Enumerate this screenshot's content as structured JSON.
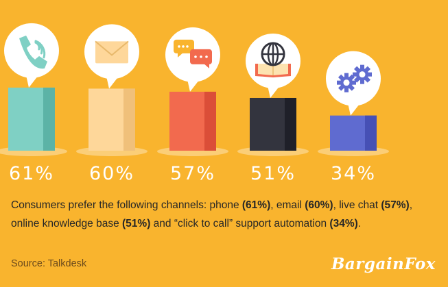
{
  "chart_data": {
    "type": "bar",
    "categories": [
      "phone",
      "email",
      "live chat",
      "online knowledge base",
      "click to call support automation"
    ],
    "values": [
      61,
      60,
      57,
      51,
      34
    ],
    "value_labels": [
      "61%",
      "60%",
      "57%",
      "51%",
      "34%"
    ],
    "icons": [
      "phone-icon",
      "envelope-icon",
      "chat-bubbles-icon",
      "globe-book-icon",
      "gears-icon"
    ],
    "colors": [
      "#7fd0c4",
      "#fed79a",
      "#f26a4e",
      "#33343e",
      "#5f6bd0"
    ],
    "shade_colors": [
      "#5cb3a6",
      "#f0c07a",
      "#db4e38",
      "#1f2029",
      "#4650b5"
    ]
  },
  "caption": {
    "intro": "Consumers prefer the following channels:  phone ",
    "phone_pct": "(61%)",
    "email_text": ", email ",
    "email_pct": "(60%)",
    "chat_text": ", live chat ",
    "chat_pct": "(57%)",
    "kb_text": ", online knowledge base ",
    "kb_pct": "(51%)",
    "ctc_text": " and “click to call” support automation ",
    "ctc_pct": "(34%)",
    "end": "."
  },
  "source": "Source:  Talkdesk",
  "brand": "BargainFox",
  "colors": {
    "background": "#f9b42e",
    "text_dark": "#262626",
    "white": "#ffffff"
  }
}
